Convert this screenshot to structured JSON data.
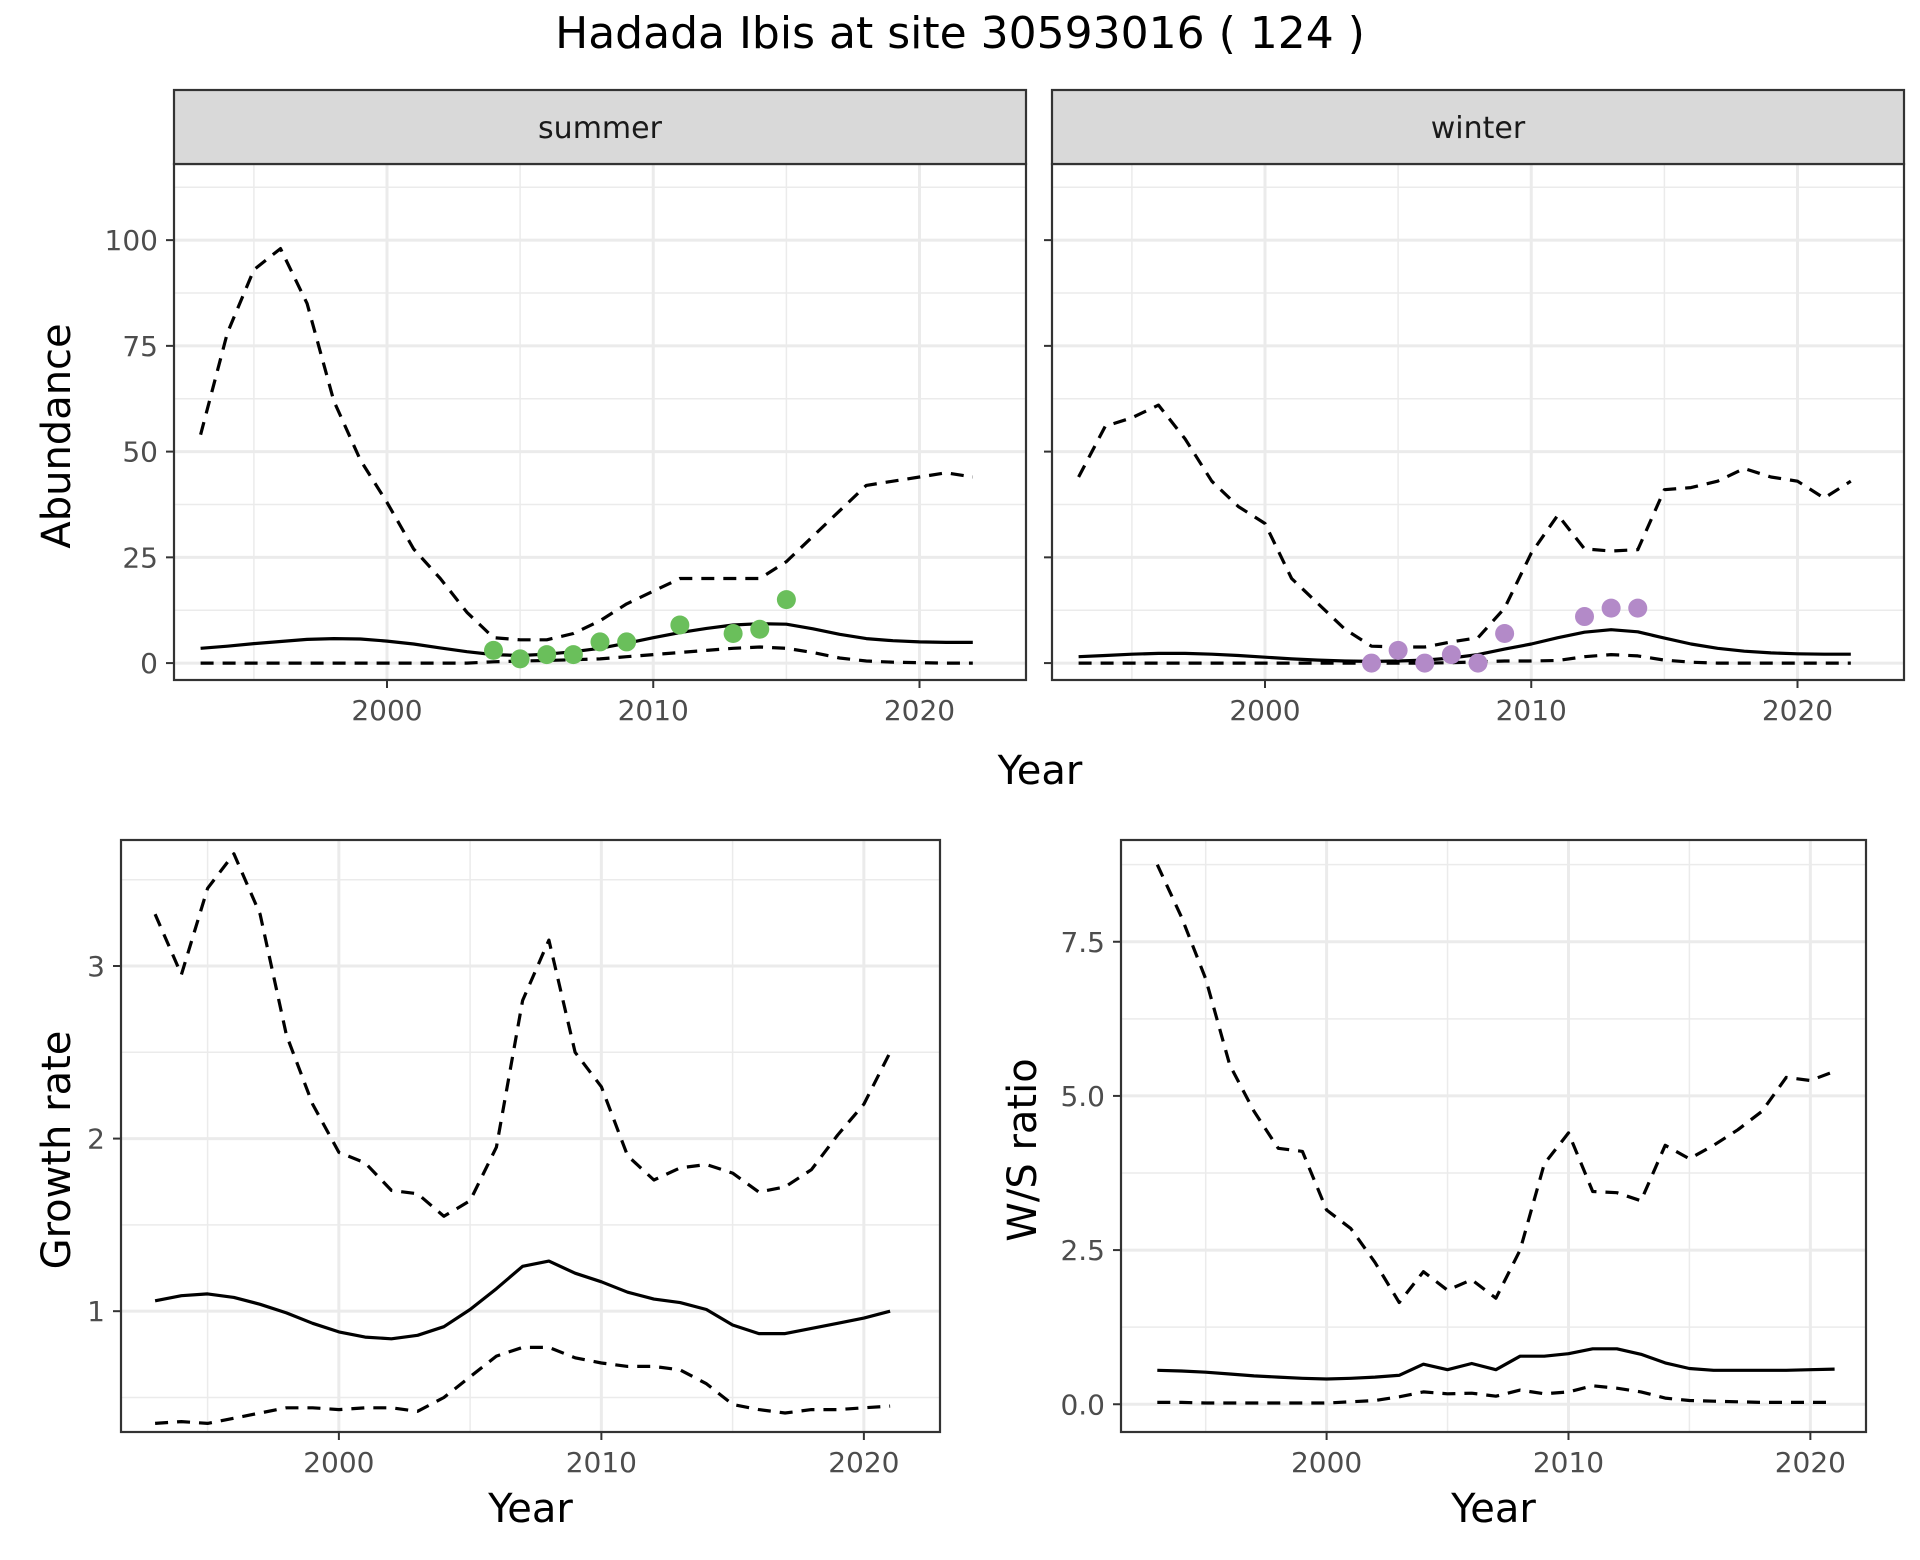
{
  "title": "Hadada Ibis at site 30593016 ( 124 )",
  "colors": {
    "summer_points": "#6abf5b",
    "winter_points": "#b38ac8",
    "line": "#000000",
    "strip_bg": "#d9d9d9",
    "grid": "#ebebeb"
  },
  "chart_data": [
    {
      "type": "line",
      "panel": "summer",
      "strip": "summer",
      "ylabel": "Abundance",
      "xlim": [
        1992,
        2024
      ],
      "ylim": [
        -4,
        118
      ],
      "xticks": [
        2000,
        2010,
        2020
      ],
      "yticks": [
        0,
        25,
        50,
        75,
        100
      ],
      "x": [
        1993,
        1994,
        1995,
        1996,
        1997,
        1998,
        1999,
        2000,
        2001,
        2002,
        2003,
        2004,
        2005,
        2006,
        2007,
        2008,
        2009,
        2010,
        2011,
        2012,
        2013,
        2014,
        2015,
        2016,
        2017,
        2018,
        2019,
        2020,
        2021,
        2022
      ],
      "series": [
        {
          "style": "solid",
          "values": [
            3.5,
            4,
            4.6,
            5.1,
            5.6,
            5.8,
            5.7,
            5.2,
            4.5,
            3.6,
            2.7,
            2,
            1.8,
            2.1,
            2.7,
            3.5,
            4.7,
            6,
            7.2,
            8.2,
            9,
            9.3,
            9.2,
            8.1,
            6.8,
            5.8,
            5.3,
            5,
            4.9,
            4.9
          ]
        },
        {
          "style": "dashed",
          "values": [
            54,
            78,
            93,
            98,
            85,
            62,
            48,
            38,
            27,
            20,
            12,
            6,
            5.5,
            5.5,
            7,
            10,
            14,
            17,
            20,
            20,
            20,
            20,
            24,
            30,
            36,
            42,
            43,
            44,
            45,
            44
          ]
        },
        {
          "style": "dashed",
          "values": [
            0,
            0,
            0,
            0,
            0,
            0,
            0,
            0,
            0,
            0,
            0,
            0.3,
            0.5,
            0.6,
            0.8,
            1,
            1.5,
            2,
            2.5,
            3,
            3.5,
            3.8,
            3.5,
            2.5,
            1.2,
            0.5,
            0.2,
            0.1,
            0,
            0
          ]
        }
      ],
      "points": {
        "x": [
          2004,
          2005,
          2006,
          2007,
          2008,
          2009,
          2011,
          2013,
          2014,
          2015
        ],
        "y": [
          3,
          1,
          2,
          2,
          5,
          5,
          9,
          7,
          8,
          15
        ]
      }
    },
    {
      "type": "line",
      "panel": "winter",
      "strip": "winter",
      "xlim": [
        1992,
        2024
      ],
      "ylim": [
        -4,
        118
      ],
      "xticks": [
        2000,
        2010,
        2020
      ],
      "yticks": [
        0,
        25,
        50,
        75,
        100
      ],
      "x": [
        1993,
        1994,
        1995,
        1996,
        1997,
        1998,
        1999,
        2000,
        2001,
        2002,
        2003,
        2004,
        2005,
        2006,
        2007,
        2008,
        2009,
        2010,
        2011,
        2012,
        2013,
        2014,
        2015,
        2016,
        2017,
        2018,
        2019,
        2020,
        2021,
        2022
      ],
      "series": [
        {
          "style": "solid",
          "values": [
            1.5,
            1.8,
            2.1,
            2.3,
            2.3,
            2.1,
            1.8,
            1.4,
            1,
            0.7,
            0.5,
            0.4,
            0.5,
            0.7,
            1.2,
            2,
            3.3,
            4.5,
            6,
            7.3,
            7.9,
            7.4,
            5.9,
            4.5,
            3.5,
            2.8,
            2.4,
            2.2,
            2.1,
            2.1
          ]
        },
        {
          "style": "dashed",
          "values": [
            44,
            56,
            58,
            61,
            53,
            43,
            37,
            33,
            20,
            14,
            8,
            4,
            3.8,
            3.8,
            5,
            6,
            13,
            26,
            35,
            27,
            26.5,
            26.8,
            41,
            41.5,
            43,
            46,
            44,
            43,
            39,
            43
          ]
        },
        {
          "style": "dashed",
          "values": [
            0,
            0,
            0,
            0,
            0,
            0,
            0,
            0,
            0,
            0,
            0,
            0,
            0,
            0,
            0.1,
            0.3,
            0.5,
            0.5,
            0.6,
            1.5,
            2,
            1.7,
            0.7,
            0.2,
            0,
            0,
            0,
            0,
            0,
            0
          ]
        }
      ],
      "points": {
        "x": [
          2004,
          2005,
          2006,
          2007,
          2008,
          2009,
          2012,
          2013,
          2014
        ],
        "y": [
          0,
          3,
          0,
          2,
          0,
          7,
          11,
          13,
          13
        ]
      }
    },
    {
      "type": "line",
      "panel": "growth",
      "xlabel": "Year",
      "ylabel": "Growth rate",
      "xlim": [
        1991.7,
        2022.9
      ],
      "ylim": [
        0.3,
        3.73
      ],
      "xticks": [
        2000,
        2010,
        2020
      ],
      "yticks": [
        1,
        2,
        3
      ],
      "x": [
        1993,
        1994,
        1995,
        1996,
        1997,
        1998,
        1999,
        2000,
        2001,
        2002,
        2003,
        2004,
        2005,
        2006,
        2007,
        2008,
        2009,
        2010,
        2011,
        2012,
        2013,
        2014,
        2015,
        2016,
        2017,
        2018,
        2019,
        2020,
        2021
      ],
      "series": [
        {
          "style": "solid",
          "values": [
            1.06,
            1.09,
            1.1,
            1.08,
            1.04,
            0.99,
            0.93,
            0.88,
            0.85,
            0.84,
            0.86,
            0.91,
            1.01,
            1.13,
            1.26,
            1.29,
            1.22,
            1.17,
            1.11,
            1.07,
            1.05,
            1.01,
            0.92,
            0.87,
            0.87,
            0.9,
            0.93,
            0.96,
            1
          ]
        },
        {
          "style": "dashed",
          "values": [
            3.3,
            2.95,
            3.45,
            3.65,
            3.3,
            2.6,
            2.2,
            1.92,
            1.86,
            1.7,
            1.68,
            1.55,
            1.64,
            1.95,
            2.8,
            3.15,
            2.5,
            2.3,
            1.9,
            1.76,
            1.83,
            1.85,
            1.8,
            1.69,
            1.72,
            1.82,
            2.02,
            2.2,
            2.5
          ]
        },
        {
          "style": "dashed",
          "values": [
            0.35,
            0.36,
            0.35,
            0.38,
            0.41,
            0.44,
            0.44,
            0.43,
            0.44,
            0.44,
            0.42,
            0.5,
            0.62,
            0.74,
            0.79,
            0.79,
            0.73,
            0.7,
            0.68,
            0.68,
            0.66,
            0.58,
            0.46,
            0.43,
            0.41,
            0.43,
            0.43,
            0.44,
            0.45
          ]
        }
      ]
    },
    {
      "type": "line",
      "panel": "ws_ratio",
      "xlabel": "Year",
      "ylabel": "W/S ratio",
      "xlim": [
        1991.5,
        2022.3
      ],
      "ylim": [
        -0.45,
        9.15
      ],
      "xticks": [
        2000,
        2010,
        2020
      ],
      "yticks": [
        0.0,
        2.5,
        5.0,
        7.5
      ],
      "ytick_labels": [
        "0.0",
        "2.5",
        "5.0",
        "7.5"
      ],
      "x": [
        1993,
        1994,
        1995,
        1996,
        1997,
        1998,
        1999,
        2000,
        2001,
        2002,
        2003,
        2004,
        2005,
        2006,
        2007,
        2008,
        2009,
        2010,
        2011,
        2012,
        2013,
        2014,
        2015,
        2016,
        2017,
        2018,
        2019,
        2020,
        2021
      ],
      "series": [
        {
          "style": "solid",
          "values": [
            0.55,
            0.54,
            0.52,
            0.49,
            0.46,
            0.44,
            0.42,
            0.41,
            0.42,
            0.44,
            0.47,
            0.65,
            0.56,
            0.66,
            0.56,
            0.78,
            0.78,
            0.82,
            0.9,
            0.9,
            0.81,
            0.67,
            0.58,
            0.55,
            0.55,
            0.55,
            0.55,
            0.56,
            0.57
          ]
        },
        {
          "style": "dashed",
          "values": [
            8.75,
            7.9,
            6.9,
            5.5,
            4.75,
            4.15,
            4.1,
            3.15,
            2.85,
            2.3,
            1.65,
            2.15,
            1.85,
            2.02,
            1.72,
            2.5,
            3.9,
            4.4,
            3.45,
            3.43,
            3.3,
            4.2,
            3.98,
            4.2,
            4.45,
            4.75,
            5.3,
            5.25,
            5.4
          ]
        },
        {
          "style": "dashed",
          "values": [
            0.03,
            0.03,
            0.02,
            0.02,
            0.02,
            0.02,
            0.02,
            0.02,
            0.04,
            0.06,
            0.12,
            0.2,
            0.17,
            0.18,
            0.13,
            0.23,
            0.17,
            0.2,
            0.3,
            0.26,
            0.2,
            0.1,
            0.06,
            0.05,
            0.04,
            0.03,
            0.03,
            0.03,
            0.03
          ]
        }
      ]
    }
  ],
  "shared_xlabel_top": "Year"
}
